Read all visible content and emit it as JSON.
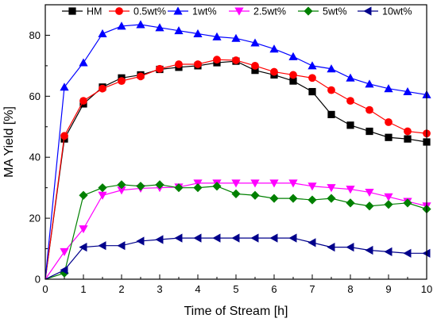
{
  "chart_data": {
    "type": "line",
    "title": "",
    "xlabel": "Time of Stream [h]",
    "ylabel": "MA Yield [%]",
    "xlim": [
      0,
      10
    ],
    "ylim": [
      0,
      90
    ],
    "xticks": [
      "0",
      "1",
      "2",
      "3",
      "4",
      "5",
      "6",
      "7",
      "8",
      "9",
      "10"
    ],
    "yticks": [
      "0",
      "20",
      "40",
      "60",
      "80"
    ],
    "grid": false,
    "legend": "top, single row",
    "x": [
      0,
      0.5,
      1,
      1.5,
      2,
      2.5,
      3,
      3.5,
      4,
      4.5,
      5,
      5.5,
      6,
      6.5,
      7,
      7.5,
      8,
      8.5,
      9,
      9.5,
      10
    ],
    "series": [
      {
        "name": "HM",
        "color": "#000000",
        "marker": "square",
        "values": [
          0,
          46,
          57.5,
          63,
          66,
          67,
          68.8,
          69.5,
          70,
          71,
          71.5,
          68.5,
          67,
          65,
          61.5,
          54,
          50.5,
          48.5,
          46.5,
          46,
          45
        ]
      },
      {
        "name": "0.5wt%",
        "color": "#ff0000",
        "marker": "circle",
        "values": [
          0,
          47,
          58.5,
          62.5,
          65,
          66.5,
          69,
          70.5,
          70.5,
          72,
          71.8,
          70,
          68,
          67,
          66,
          62,
          58.5,
          55.5,
          51.5,
          48.5,
          47.8
        ]
      },
      {
        "name": "1wt%",
        "color": "#0000ff",
        "marker": "triangle-up",
        "values": [
          0,
          63,
          71,
          80.5,
          83,
          83.5,
          82.5,
          81.5,
          80.5,
          79.5,
          79,
          77.5,
          75.5,
          73,
          70,
          69,
          66,
          64,
          62.5,
          61.5,
          60.5
        ]
      },
      {
        "name": "2.5wt%",
        "color": "#ff00ff",
        "marker": "triangle-down",
        "values": [
          0,
          9,
          16.5,
          27.5,
          29.2,
          29.8,
          30,
          30.2,
          31.5,
          31.5,
          31.5,
          31.5,
          31.5,
          31.5,
          30.5,
          30,
          29.5,
          28.5,
          27,
          25.5,
          24
        ]
      },
      {
        "name": "5wt%",
        "color": "#008000",
        "marker": "diamond",
        "values": [
          0,
          2,
          27.5,
          30,
          31,
          30.5,
          31,
          30,
          30,
          30.5,
          28,
          27.5,
          26.5,
          26.5,
          26,
          26.5,
          25,
          24,
          24.5,
          25,
          23
        ]
      },
      {
        "name": "10wt%",
        "color": "#00008b",
        "marker": "triangle-left",
        "values": [
          0,
          3,
          10.5,
          11,
          11,
          12.5,
          13,
          13.5,
          13.5,
          13.5,
          13.5,
          13.5,
          13.5,
          13.5,
          12,
          10.5,
          10.5,
          9.5,
          9,
          8.5,
          8.5
        ]
      }
    ]
  }
}
